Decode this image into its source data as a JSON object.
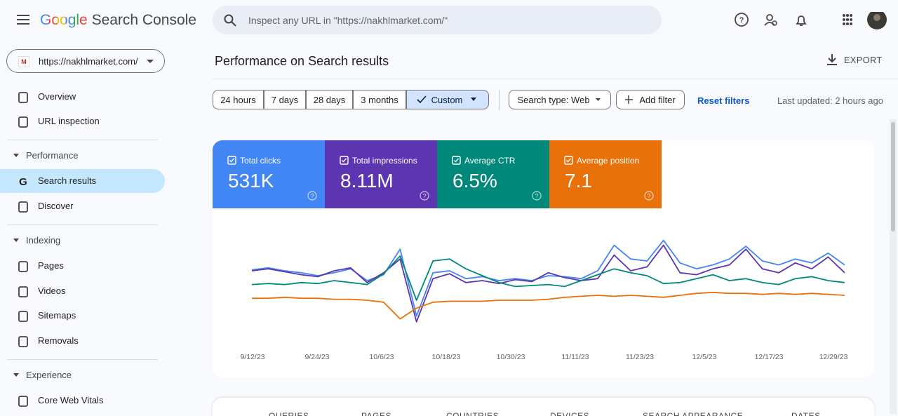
{
  "header": {
    "logo_google": "Google",
    "logo_product": "Search Console",
    "search_placeholder": "Inspect any URL in \"https://nakhlmarket.com/\""
  },
  "property": "https://nakhlmarket.com/",
  "nav": {
    "top": [
      "Overview",
      "URL inspection"
    ],
    "sections": [
      {
        "title": "Performance",
        "items": [
          "Search results",
          "Discover"
        ]
      },
      {
        "title": "Indexing",
        "items": [
          "Pages",
          "Videos",
          "Sitemaps",
          "Removals"
        ]
      },
      {
        "title": "Experience",
        "items": [
          "Core Web Vitals"
        ]
      }
    ]
  },
  "page_title": "Performance on Search results",
  "export": "EXPORT",
  "date_ranges": [
    "24 hours",
    "7 days",
    "28 days",
    "3 months",
    "Custom"
  ],
  "search_type": "Search type: Web",
  "add_filter": "Add filter",
  "reset_filters": "Reset filters",
  "last_updated": "Last updated: 2 hours ago",
  "metrics": [
    {
      "label": "Total clicks",
      "value": "531K",
      "color": "#4285f4"
    },
    {
      "label": "Total impressions",
      "value": "8.11M",
      "color": "#5e35b1"
    },
    {
      "label": "Average CTR",
      "value": "6.5%",
      "color": "#00897b"
    },
    {
      "label": "Average position",
      "value": "7.1",
      "color": "#e8710a"
    }
  ],
  "chart_data": {
    "type": "line",
    "ylim": [
      0,
      100
    ],
    "xtick_labels": [
      "9/12/23",
      "9/24/23",
      "10/6/23",
      "10/18/23",
      "10/30/23",
      "11/11/23",
      "11/23/23",
      "12/5/23",
      "12/17/23",
      "12/29/23"
    ],
    "series": [
      {
        "name": "Total clicks",
        "color": "#4285f4",
        "values": [
          61,
          63,
          60,
          58,
          55,
          58,
          62,
          50,
          56,
          82,
          14,
          58,
          60,
          52,
          54,
          50,
          52,
          50,
          55,
          54,
          52,
          60,
          86,
          72,
          70,
          91,
          68,
          62,
          66,
          72,
          85,
          70,
          66,
          72,
          68,
          78,
          66
        ]
      },
      {
        "name": "Total impressions",
        "color": "#5e35b1",
        "values": [
          60,
          62,
          59,
          56,
          54,
          60,
          63,
          48,
          58,
          72,
          8,
          52,
          57,
          48,
          50,
          47,
          51,
          49,
          58,
          53,
          50,
          52,
          76,
          60,
          64,
          86,
          58,
          56,
          62,
          66,
          82,
          62,
          58,
          68,
          62,
          74,
          58
        ]
      },
      {
        "name": "Average CTR",
        "color": "#00897b",
        "values": [
          46,
          47,
          46,
          48,
          47,
          50,
          48,
          46,
          57,
          75,
          30,
          70,
          72,
          62,
          55,
          48,
          44,
          45,
          46,
          44,
          50,
          56,
          62,
          58,
          55,
          47,
          48,
          52,
          56,
          50,
          52,
          48,
          46,
          52,
          54,
          50,
          48
        ]
      },
      {
        "name": "Average position",
        "color": "#e8710a",
        "values": [
          32,
          32,
          33,
          32,
          32,
          31,
          31,
          30,
          28,
          11,
          22,
          28,
          29,
          29,
          29,
          30,
          30,
          30,
          31,
          33,
          34,
          35,
          34,
          35,
          34,
          33,
          35,
          37,
          38,
          37,
          37,
          36,
          37,
          36,
          37,
          36,
          35
        ]
      }
    ]
  },
  "tabs": [
    "QUERIES",
    "PAGES",
    "COUNTRIES",
    "DEVICES",
    "SEARCH APPEARANCE",
    "DATES"
  ]
}
